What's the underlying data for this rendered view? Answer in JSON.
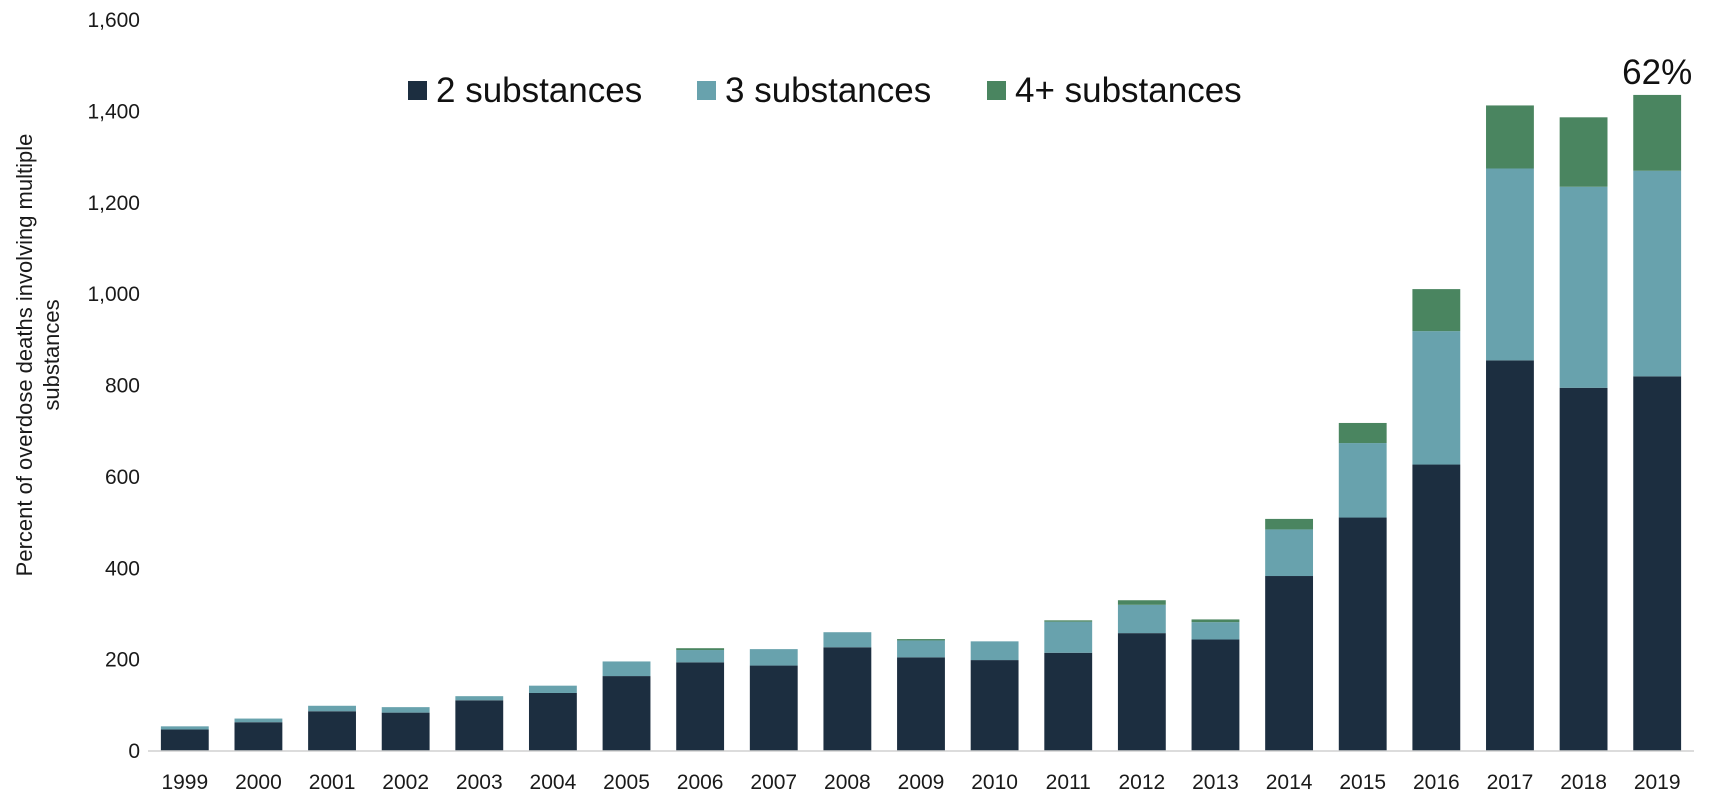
{
  "chart_data": {
    "type": "bar",
    "stacked": true,
    "title": "",
    "xlabel": "",
    "ylabel": "Percent of overdose deaths involving multiple substances",
    "ylim": [
      0,
      1600
    ],
    "yticks": [
      "0",
      "200",
      "400",
      "600",
      "800",
      "1,000",
      "1,200",
      "1,400",
      "1,600"
    ],
    "ytick_values": [
      0,
      200,
      400,
      600,
      800,
      1000,
      1200,
      1400,
      1600
    ],
    "grid": false,
    "legend_position": "top-center",
    "categories": [
      "1999",
      "2000",
      "2001",
      "2002",
      "2003",
      "2004",
      "2005",
      "2006",
      "2007",
      "2008",
      "2009",
      "2010",
      "2011",
      "2012",
      "2013",
      "2014",
      "2015",
      "2016",
      "2017",
      "2018",
      "2019"
    ],
    "series": [
      {
        "name": "2 substances",
        "color": "#1c2e40",
        "values": [
          47,
          63,
          87,
          84,
          111,
          127,
          164,
          194,
          187,
          227,
          205,
          199,
          215,
          258,
          244,
          383,
          511,
          627,
          855,
          795,
          820
        ]
      },
      {
        "name": "3 substances",
        "color": "#68a2ad",
        "values": [
          7,
          8,
          12,
          12,
          9,
          16,
          32,
          27,
          36,
          33,
          37,
          41,
          68,
          62,
          38,
          102,
          163,
          292,
          420,
          440,
          450
        ]
      },
      {
        "name": "4+ substances",
        "color": "#4a8560",
        "values": [
          0,
          0,
          0,
          0,
          0,
          0,
          0,
          4,
          0,
          0,
          3,
          0,
          3,
          10,
          6,
          23,
          44,
          92,
          138,
          152,
          166
        ]
      }
    ],
    "annotations": [
      {
        "text": "62%",
        "category": "2019"
      }
    ]
  }
}
